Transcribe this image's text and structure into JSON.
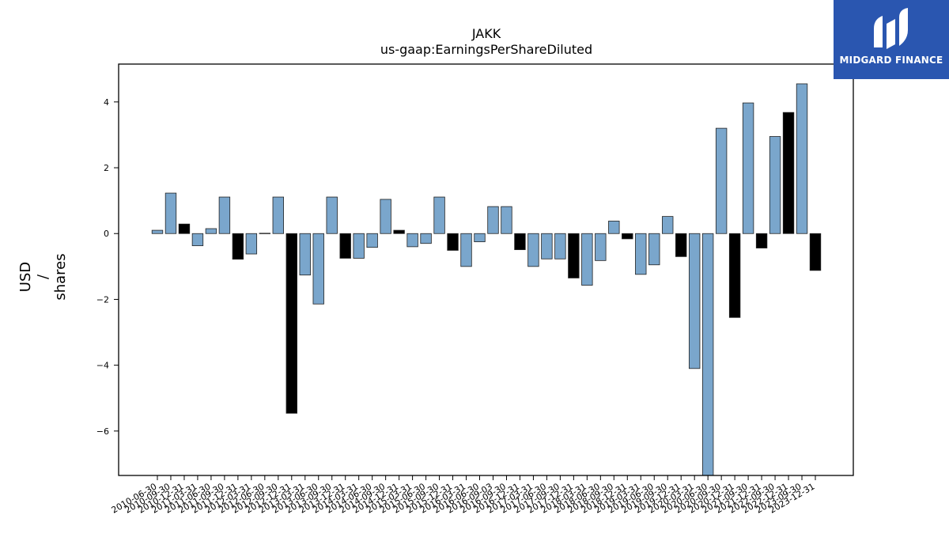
{
  "chart_data": {
    "type": "bar",
    "title": "JAKK",
    "subtitle": "us-gaap:EarningsPerShareDiluted",
    "ylabel_lines": [
      "USD",
      "/",
      "shares"
    ],
    "ylim": [
      -7.35,
      5.15
    ],
    "yticks": [
      4,
      2,
      0,
      -2,
      -4,
      -6
    ],
    "ytick_labels": [
      "4",
      "2",
      "0",
      "−2",
      "−4",
      "−6"
    ],
    "categories": [
      "2010-06-30",
      "2010-09-30",
      "2010-12-31",
      "2011-03-31",
      "2011-06-30",
      "2011-09-30",
      "2011-12-31",
      "2012-03-31",
      "2012-06-30",
      "2012-09-30",
      "2012-12-31",
      "2013-03-31",
      "2013-06-30",
      "2013-09-30",
      "2013-12-31",
      "2014-03-31",
      "2014-06-30",
      "2014-09-30",
      "2014-12-31",
      "2015-03-31",
      "2015-06-30",
      "2015-09-30",
      "2015-12-31",
      "2016-03-31",
      "2016-06-30",
      "2016-09-03",
      "2016-09-30",
      "2016-12-31",
      "2017-03-31",
      "2017-06-30",
      "2017-09-30",
      "2017-12-31",
      "2018-03-31",
      "2018-06-30",
      "2018-09-30",
      "2018-12-31",
      "2019-03-31",
      "2019-06-30",
      "2019-09-30",
      "2019-12-31",
      "2020-03-31",
      "2020-06-30",
      "2020-09-30",
      "2020-12-31",
      "2021-09-30",
      "2021-12-31",
      "2022-09-30",
      "2022-12-31",
      "2023-09-30",
      "2023-12-31"
    ],
    "values": [
      0.1,
      1.23,
      0.29,
      -0.37,
      0.15,
      1.11,
      -0.78,
      -0.62,
      0.01,
      1.11,
      -5.46,
      -1.26,
      -2.14,
      1.11,
      -0.75,
      -0.75,
      -0.42,
      1.04,
      0.1,
      -0.4,
      -0.3,
      1.11,
      -0.51,
      -1.0,
      -0.25,
      0.82,
      0.82,
      -0.49,
      -1.0,
      -0.77,
      -0.77,
      -1.35,
      -1.57,
      -0.82,
      0.38,
      -0.16,
      -1.24,
      -0.95,
      0.52,
      -0.7,
      -4.1,
      -7.35,
      3.2,
      -2.55,
      3.97,
      -0.44,
      2.95,
      3.68,
      4.55,
      -1.12
    ],
    "colors": [
      "blue",
      "blue",
      "black",
      "blue",
      "blue",
      "blue",
      "black",
      "blue",
      "blue",
      "blue",
      "black",
      "blue",
      "blue",
      "blue",
      "black",
      "blue",
      "blue",
      "blue",
      "black",
      "blue",
      "blue",
      "blue",
      "black",
      "blue",
      "blue",
      "blue",
      "blue",
      "black",
      "blue",
      "blue",
      "blue",
      "black",
      "blue",
      "blue",
      "blue",
      "black",
      "blue",
      "blue",
      "blue",
      "black",
      "blue",
      "blue",
      "blue",
      "black",
      "blue",
      "black",
      "blue",
      "black",
      "blue",
      "black"
    ],
    "palette": {
      "blue": "#7aa6cc",
      "black": "#000000",
      "edge": "#222222"
    },
    "grid": false,
    "legend": "none"
  },
  "logo": {
    "text": "MIDGARD FINANCE",
    "background": "#2a56b0"
  }
}
